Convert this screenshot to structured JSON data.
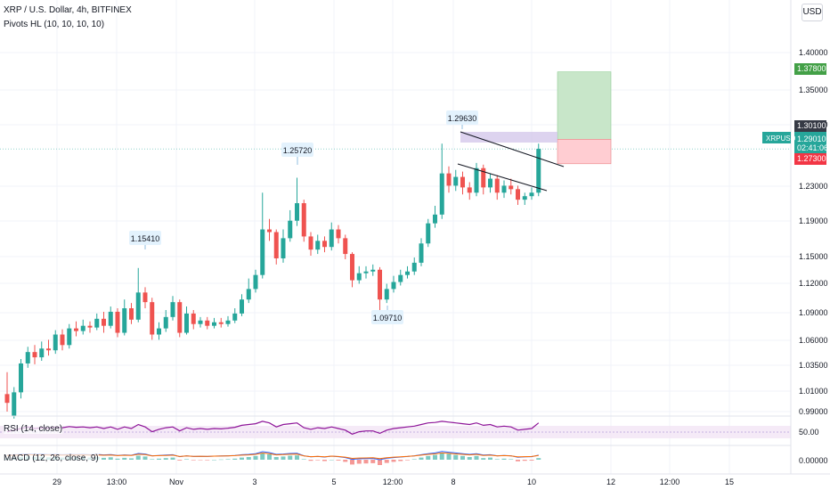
{
  "header": {
    "title": "XRP / U.S. Dollar, 4h, BITFINEX",
    "indicator": "Pivots HL (10, 10, 10, 10)"
  },
  "currency_button": "USD",
  "price_axis": {
    "ticks": [
      "1.40000",
      "1.35000",
      "1.30000",
      "1.23000",
      "1.19000",
      "1.15000",
      "1.12000",
      "1.09000",
      "1.06000",
      "1.03500",
      "1.01000",
      "0.99000"
    ],
    "tag_target": "1.37800",
    "tag_entry": "1.30100",
    "tag_symbol": "XRPUSD",
    "tag_last": "1.29010",
    "tag_countdown": "02:41:06",
    "tag_stop": "1.27300"
  },
  "time_axis": {
    "labels": [
      "29",
      "13:00",
      "Nov",
      "3",
      "5",
      "12:00",
      "8",
      "10",
      "12",
      "12:00",
      "15"
    ]
  },
  "pivots": [
    {
      "label": "1.15410",
      "kind": "high"
    },
    {
      "label": "1.25720",
      "kind": "high"
    },
    {
      "label": "1.29630",
      "kind": "high"
    },
    {
      "label": "1.09710",
      "kind": "low"
    }
  ],
  "rsi": {
    "label": "RSI (14, close)",
    "value": "50.00"
  },
  "macd": {
    "label": "MACD (12, 26, close, 9)",
    "value": "0.00000"
  },
  "colors": {
    "up": "#26a69a",
    "down": "#ef5350",
    "rsi": "#8e1599",
    "macd": "#2962ff",
    "signal": "#ff6d00",
    "target_zone": "#c8e6c9",
    "stop_zone": "#ffcdd2",
    "entry_zone": "#d1c4e9"
  },
  "chart_data": {
    "type": "candlestick",
    "timeframe": "4h",
    "symbol": "XRPUSD",
    "candles": [
      [
        1.01,
        1.0,
        1.035,
        0.99
      ],
      [
        0.985,
        1.012,
        1.018,
        0.982
      ],
      [
        1.012,
        1.045,
        1.05,
        1.005
      ],
      [
        1.045,
        1.058,
        1.064,
        1.04
      ],
      [
        1.058,
        1.052,
        1.066,
        1.044
      ],
      [
        1.052,
        1.062,
        1.07,
        1.048
      ],
      [
        1.062,
        1.06,
        1.072,
        1.054
      ],
      [
        1.06,
        1.078,
        1.083,
        1.056
      ],
      [
        1.078,
        1.066,
        1.084,
        1.06
      ],
      [
        1.066,
        1.085,
        1.09,
        1.062
      ],
      [
        1.085,
        1.082,
        1.093,
        1.076
      ],
      [
        1.082,
        1.088,
        1.095,
        1.078
      ],
      [
        1.088,
        1.086,
        1.093,
        1.08
      ],
      [
        1.086,
        1.096,
        1.102,
        1.083
      ],
      [
        1.096,
        1.088,
        1.104,
        1.08
      ],
      [
        1.088,
        1.104,
        1.11,
        1.085
      ],
      [
        1.104,
        1.08,
        1.108,
        1.075
      ],
      [
        1.08,
        1.108,
        1.118,
        1.077
      ],
      [
        1.108,
        1.095,
        1.114,
        1.09
      ],
      [
        1.095,
        1.126,
        1.154,
        1.092
      ],
      [
        1.126,
        1.115,
        1.132,
        1.108
      ],
      [
        1.115,
        1.078,
        1.12,
        1.072
      ],
      [
        1.078,
        1.085,
        1.092,
        1.072
      ],
      [
        1.085,
        1.098,
        1.106,
        1.081
      ],
      [
        1.098,
        1.115,
        1.122,
        1.094
      ],
      [
        1.115,
        1.08,
        1.118,
        1.075
      ],
      [
        1.08,
        1.102,
        1.11,
        1.078
      ],
      [
        1.102,
        1.09,
        1.106,
        1.084
      ],
      [
        1.09,
        1.094,
        1.098,
        1.086
      ],
      [
        1.094,
        1.088,
        1.098,
        1.084
      ],
      [
        1.088,
        1.092,
        1.097,
        1.085
      ],
      [
        1.092,
        1.09,
        1.097,
        1.086
      ],
      [
        1.09,
        1.094,
        1.099,
        1.087
      ],
      [
        1.094,
        1.102,
        1.108,
        1.091
      ],
      [
        1.102,
        1.118,
        1.124,
        1.099
      ],
      [
        1.118,
        1.13,
        1.142,
        1.114
      ],
      [
        1.13,
        1.146,
        1.152,
        1.126
      ],
      [
        1.146,
        1.198,
        1.24,
        1.142
      ],
      [
        1.198,
        1.195,
        1.21,
        1.185
      ],
      [
        1.195,
        1.165,
        1.198,
        1.158
      ],
      [
        1.165,
        1.188,
        1.198,
        1.16
      ],
      [
        1.188,
        1.208,
        1.22,
        1.184
      ],
      [
        1.208,
        1.228,
        1.257,
        1.202
      ],
      [
        1.228,
        1.19,
        1.232,
        1.184
      ],
      [
        1.19,
        1.175,
        1.195,
        1.168
      ],
      [
        1.175,
        1.185,
        1.192,
        1.17
      ],
      [
        1.185,
        1.178,
        1.19,
        1.172
      ],
      [
        1.178,
        1.198,
        1.206,
        1.174
      ],
      [
        1.198,
        1.188,
        1.203,
        1.182
      ],
      [
        1.188,
        1.17,
        1.192,
        1.164
      ],
      [
        1.17,
        1.14,
        1.172,
        1.132
      ],
      [
        1.14,
        1.148,
        1.156,
        1.136
      ],
      [
        1.148,
        1.15,
        1.156,
        1.142
      ],
      [
        1.15,
        1.152,
        1.158,
        1.145
      ],
      [
        1.152,
        1.118,
        1.155,
        1.097
      ],
      [
        1.118,
        1.13,
        1.136,
        1.114
      ],
      [
        1.13,
        1.138,
        1.145,
        1.126
      ],
      [
        1.138,
        1.146,
        1.152,
        1.134
      ],
      [
        1.146,
        1.15,
        1.156,
        1.142
      ],
      [
        1.15,
        1.16,
        1.166,
        1.146
      ],
      [
        1.16,
        1.182,
        1.188,
        1.156
      ],
      [
        1.182,
        1.205,
        1.21,
        1.178
      ],
      [
        1.205,
        1.215,
        1.225,
        1.2
      ],
      [
        1.215,
        1.262,
        1.296,
        1.21
      ],
      [
        1.262,
        1.248,
        1.27,
        1.24
      ],
      [
        1.248,
        1.258,
        1.266,
        1.242
      ],
      [
        1.258,
        1.246,
        1.264,
        1.238
      ],
      [
        1.246,
        1.24,
        1.252,
        1.232
      ],
      [
        1.24,
        1.268,
        1.274,
        1.236
      ],
      [
        1.268,
        1.246,
        1.272,
        1.238
      ],
      [
        1.246,
        1.256,
        1.262,
        1.24
      ],
      [
        1.256,
        1.24,
        1.26,
        1.232
      ],
      [
        1.24,
        1.248,
        1.254,
        1.234
      ],
      [
        1.248,
        1.244,
        1.256,
        1.238
      ],
      [
        1.244,
        1.232,
        1.248,
        1.226
      ],
      [
        1.232,
        1.236,
        1.24,
        1.226
      ],
      [
        1.236,
        1.24,
        1.246,
        1.232
      ],
      [
        1.24,
        1.29,
        1.296,
        1.236
      ]
    ],
    "position": {
      "entry": 1.301,
      "target": 1.378,
      "stop": 1.273
    },
    "rsi_level": 50,
    "macd_zero": 0
  }
}
